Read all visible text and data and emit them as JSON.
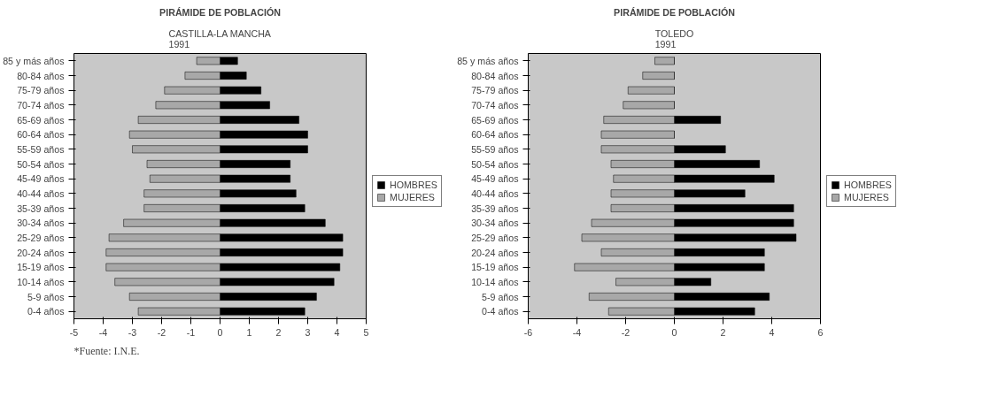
{
  "chart_data": [
    {
      "type": "bar",
      "orientation": "horizontal",
      "stacked": true,
      "title": "PIRÁMIDE DE POBLACIÓN",
      "subtitle": "CASTILLA-LA MANCHA\n1991",
      "categories": [
        "85 y más años",
        "80-84 años",
        "75-79 años",
        "70-74 años",
        "65-69 años",
        "60-64 años",
        "55-59 años",
        "50-54 años",
        "45-49 años",
        "40-44 años",
        "35-39 años",
        "30-34 años",
        "25-29 años",
        "20-24 años",
        "15-19 años",
        "10-14 años",
        "5-9 años",
        "0-4 años"
      ],
      "series": [
        {
          "name": "HOMBRES",
          "color": "#000000",
          "values": [
            0.6,
            0.9,
            1.4,
            1.7,
            2.7,
            3.0,
            3.0,
            2.4,
            2.4,
            2.6,
            2.9,
            3.6,
            4.2,
            4.2,
            4.1,
            3.9,
            3.3,
            2.9
          ]
        },
        {
          "name": "MUJERES",
          "color": "#a8a8a8",
          "values": [
            -0.8,
            -1.2,
            -1.9,
            -2.2,
            -2.8,
            -3.1,
            -3.0,
            -2.5,
            -2.4,
            -2.6,
            -2.6,
            -3.3,
            -3.8,
            -3.9,
            -3.9,
            -3.6,
            -3.1,
            -2.8
          ]
        }
      ],
      "xlim": [
        -5,
        5
      ],
      "xticks": [
        -5,
        -4,
        -3,
        -2,
        -1,
        0,
        1,
        2,
        3,
        4,
        5
      ],
      "legend": "right",
      "annotations": [
        "*Fuente: I.N.E."
      ]
    },
    {
      "type": "bar",
      "orientation": "horizontal",
      "stacked": true,
      "title": "PIRÁMIDE DE POBLACIÓN",
      "subtitle": "TOLEDO\n1991",
      "categories": [
        "85 y más años",
        "80-84 años",
        "75-79 años",
        "70-74 años",
        "65-69 años",
        "60-64 años",
        "55-59 años",
        "50-54 años",
        "45-49 años",
        "40-44 años",
        "35-39 años",
        "30-34 años",
        "25-29 años",
        "20-24 años",
        "15-19 años",
        "10-14 años",
        "5-9 años",
        "0-4 años"
      ],
      "series": [
        {
          "name": "HOMBRES",
          "color": "#000000",
          "values": [
            0,
            0,
            0,
            0,
            1.9,
            0,
            2.1,
            3.5,
            4.1,
            2.9,
            4.9,
            4.9,
            5.0,
            3.7,
            3.7,
            1.5,
            3.9,
            3.3
          ]
        },
        {
          "name": "MUJERES",
          "color": "#a8a8a8",
          "values": [
            -0.8,
            -1.3,
            -1.9,
            -2.1,
            -2.9,
            -3.0,
            -3.0,
            -2.6,
            -2.5,
            -2.6,
            -2.6,
            -3.4,
            -3.8,
            -3.0,
            -4.1,
            -2.4,
            -3.5,
            -2.7
          ]
        }
      ],
      "xlim": [
        -6,
        6
      ],
      "xticks": [
        -6,
        -4,
        -2,
        0,
        2,
        4,
        6
      ],
      "legend": "right"
    }
  ]
}
